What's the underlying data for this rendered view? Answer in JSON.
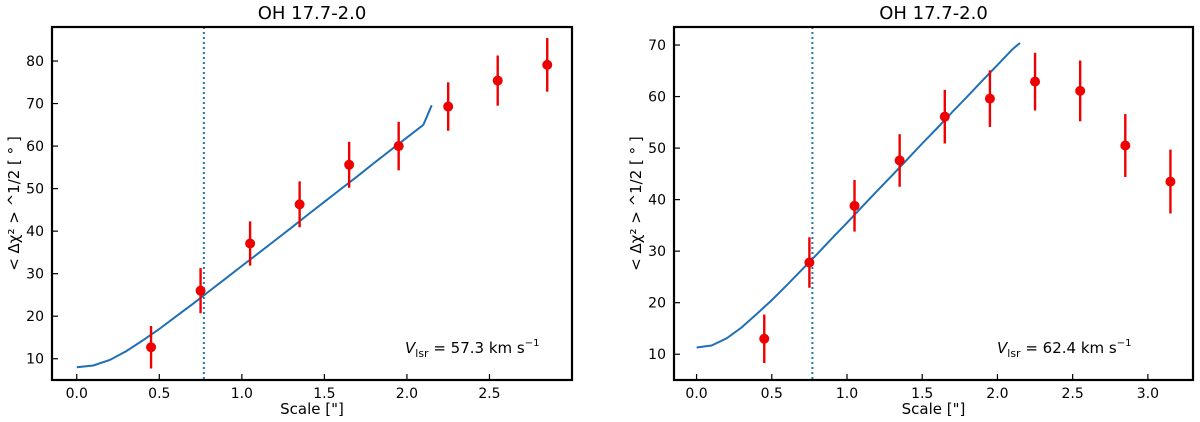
{
  "colors": {
    "points": "#ee0000",
    "fit": "#1f6fb4",
    "vline": "#1f77b4",
    "axis": "#000000"
  },
  "chart_data": [
    {
      "type": "scatter",
      "title": "OH 17.7-2.0",
      "xlabel": "Scale [\"]",
      "ylabel": "< Δχ² > ^1/2  [ ° ]",
      "xlim": [
        -0.15,
        3.0
      ],
      "ylim": [
        5,
        88
      ],
      "xticks": [
        0.0,
        0.5,
        1.0,
        1.5,
        2.0,
        2.5
      ],
      "xtick_labels": [
        "0.0",
        "0.5",
        "1.0",
        "1.5",
        "2.0",
        "2.5"
      ],
      "yticks": [
        10,
        20,
        30,
        40,
        50,
        60,
        70,
        80
      ],
      "ytick_labels": [
        "10",
        "20",
        "30",
        "40",
        "50",
        "60",
        "70",
        "80"
      ],
      "points": {
        "x": [
          0.45,
          0.75,
          1.05,
          1.35,
          1.65,
          1.95,
          2.25,
          2.55,
          2.85
        ],
        "y": [
          12.7,
          26.0,
          37.1,
          46.3,
          55.6,
          60.0,
          69.3,
          75.4,
          79.1
        ],
        "err": [
          5.0,
          5.3,
          5.2,
          5.4,
          5.4,
          5.7,
          5.7,
          5.9,
          6.3
        ]
      },
      "fit_curve": {
        "x": [
          0.0,
          0.1,
          0.2,
          0.3,
          0.4,
          0.5,
          0.6,
          0.7,
          0.8,
          0.9,
          1.0,
          1.1,
          1.2,
          1.3,
          1.4,
          1.5,
          1.6,
          1.7,
          1.8,
          1.9,
          2.0,
          2.1,
          2.15
        ],
        "y": [
          8.0,
          8.4,
          9.7,
          11.8,
          14.3,
          17.0,
          19.9,
          22.8,
          25.8,
          28.8,
          31.8,
          34.8,
          37.8,
          40.8,
          43.9,
          46.9,
          49.9,
          52.9,
          56.0,
          59.0,
          62.0,
          65.0,
          69.6
        ]
      },
      "vline_x": 0.77,
      "annotation": {
        "prefix": "V",
        "sub": "lsr",
        "text": " = 57.3 km s",
        "sup": "−1"
      }
    },
    {
      "type": "scatter",
      "title": "OH 17.7-2.0",
      "xlabel": "Scale [\"]",
      "ylabel": "< Δχ² > ^1/2  [ ° ]",
      "xlim": [
        -0.15,
        3.3
      ],
      "ylim": [
        5,
        73.5
      ],
      "xticks": [
        0.0,
        0.5,
        1.0,
        1.5,
        2.0,
        2.5,
        3.0
      ],
      "xtick_labels": [
        "0.0",
        "0.5",
        "1.0",
        "1.5",
        "2.0",
        "2.5",
        "3.0"
      ],
      "yticks": [
        10,
        20,
        30,
        40,
        50,
        60,
        70
      ],
      "ytick_labels": [
        "10",
        "20",
        "30",
        "40",
        "50",
        "60",
        "70"
      ],
      "points": {
        "x": [
          0.45,
          0.75,
          1.05,
          1.35,
          1.65,
          1.95,
          2.25,
          2.55,
          2.85,
          3.15
        ],
        "y": [
          13.0,
          27.8,
          38.8,
          47.6,
          56.1,
          59.6,
          62.9,
          61.1,
          50.5,
          43.5
        ],
        "err": [
          4.7,
          4.9,
          5.0,
          5.1,
          5.2,
          5.5,
          5.6,
          5.9,
          6.1,
          6.2
        ]
      },
      "fit_curve": {
        "x": [
          0.0,
          0.1,
          0.2,
          0.3,
          0.4,
          0.5,
          0.6,
          0.7,
          0.8,
          0.9,
          1.0,
          1.1,
          1.2,
          1.3,
          1.4,
          1.5,
          1.6,
          1.7,
          1.8,
          1.9,
          2.0,
          2.1,
          2.15
        ],
        "y": [
          11.3,
          11.7,
          13.1,
          15.2,
          17.8,
          20.5,
          23.4,
          26.4,
          29.4,
          32.5,
          35.5,
          38.6,
          41.7,
          44.7,
          47.8,
          50.9,
          53.9,
          57.0,
          60.0,
          63.1,
          66.1,
          69.2,
          70.4
        ]
      },
      "vline_x": 0.77,
      "annotation": {
        "prefix": "V",
        "sub": "lsr",
        "text": " = 62.4 km s",
        "sup": "−1"
      }
    }
  ]
}
